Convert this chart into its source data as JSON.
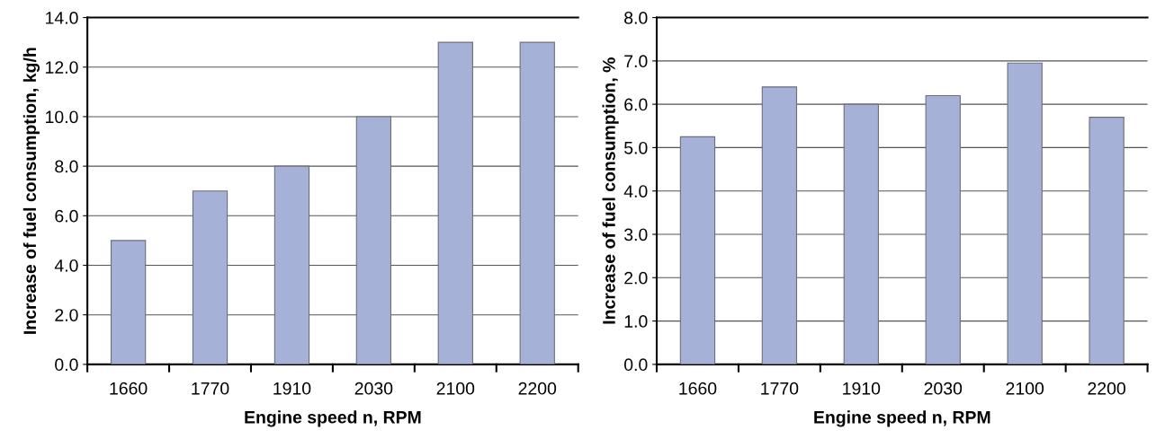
{
  "chart_data": [
    {
      "type": "bar",
      "xlabel": "Engine speed n, RPM",
      "ylabel": "Increase of fuel consumption, kg/h",
      "categories": [
        "1660",
        "1770",
        "1910",
        "2030",
        "2100",
        "2200"
      ],
      "values": [
        5.0,
        7.0,
        8.0,
        10.0,
        13.0,
        13.0
      ],
      "color": "#a5b1d6",
      "ylim": [
        0,
        14
      ],
      "yticks": [
        {
          "value": 0,
          "label": "0.0"
        },
        {
          "value": 2,
          "label": "2.0"
        },
        {
          "value": 4,
          "label": "4.0"
        },
        {
          "value": 6,
          "label": "6.0"
        },
        {
          "value": 8,
          "label": "8.0"
        },
        {
          "value": 10,
          "label": "10.0"
        },
        {
          "value": 12,
          "label": "12.0"
        },
        {
          "value": 14,
          "label": "14.0"
        }
      ],
      "grid": "y",
      "legend": false
    },
    {
      "type": "bar",
      "xlabel": "Engine speed n, RPM",
      "ylabel": "Increase of fuel consumption, %",
      "categories": [
        "1660",
        "1770",
        "1910",
        "2030",
        "2100",
        "2200"
      ],
      "values": [
        5.25,
        6.4,
        6.0,
        6.2,
        6.95,
        5.7
      ],
      "color": "#a5b1d6",
      "ylim": [
        0,
        8
      ],
      "yticks": [
        {
          "value": 0,
          "label": "0.0"
        },
        {
          "value": 1,
          "label": "1.0"
        },
        {
          "value": 2,
          "label": "2.0"
        },
        {
          "value": 3,
          "label": "3.0"
        },
        {
          "value": 4,
          "label": "4.0"
        },
        {
          "value": 5,
          "label": "5.0"
        },
        {
          "value": 6,
          "label": "6.0"
        },
        {
          "value": 7,
          "label": "7.0"
        },
        {
          "value": 8,
          "label": "8.0"
        }
      ],
      "grid": "y",
      "legend": false
    }
  ]
}
